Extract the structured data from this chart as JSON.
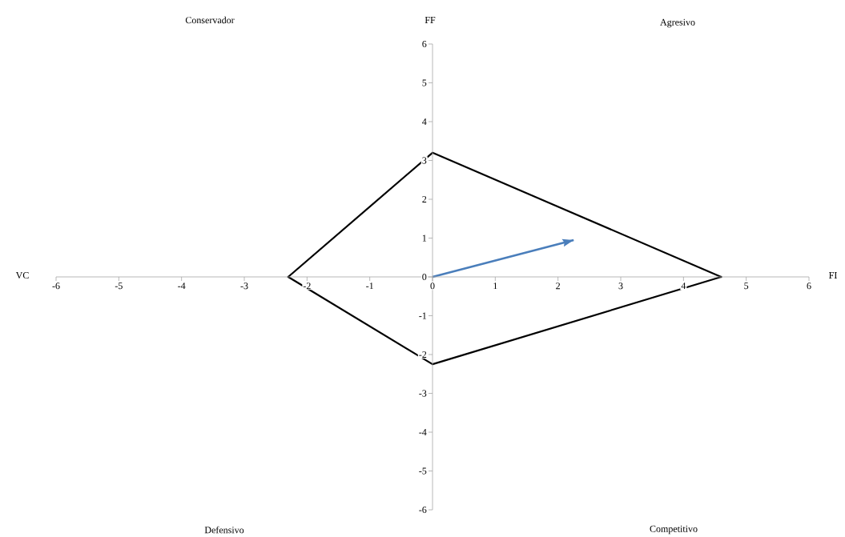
{
  "chart_data": {
    "type": "line",
    "xlabel": "FI",
    "ylabel": "FF",
    "annotations": [
      "VC",
      "Conservador",
      "Agresivo",
      "Defensivo",
      "Competitivo"
    ],
    "series": [
      {
        "color": "#000000",
        "x": [
          -2.3,
          0,
          4.6
        ],
        "values": [
          0,
          3.2,
          0
        ]
      },
      {
        "color": "#000000",
        "x": [
          -2.3,
          0,
          4.6
        ],
        "values": [
          0,
          -2.25,
          0
        ]
      },
      {
        "color": "#4a7ebb",
        "x": [
          0,
          2.25
        ],
        "values": [
          0,
          0.95
        ]
      }
    ],
    "xlim": [
      -6,
      6
    ],
    "ylim": [
      -6,
      6
    ],
    "xticks": [
      -6,
      -5,
      -4,
      -3,
      -2,
      -1,
      0,
      1,
      2,
      3,
      4,
      5,
      6
    ],
    "yticks": [
      -6,
      -5,
      -4,
      -3,
      -2,
      -1,
      0,
      1,
      2,
      3,
      4,
      5,
      6
    ],
    "marker": "none",
    "line_style": "solid"
  }
}
